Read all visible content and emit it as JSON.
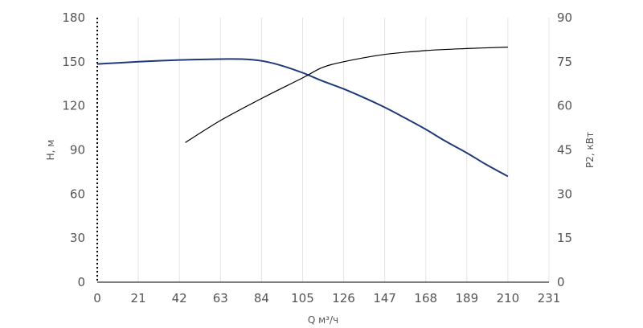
{
  "chart_data": {
    "type": "line",
    "title": "",
    "xlabel": "Q м³/ч",
    "ylabel_left": "Н, м",
    "ylabel_right": "Р2, кВт",
    "x_ticks": [
      "0",
      "21",
      "42",
      "63",
      "84",
      "105",
      "126",
      "147",
      "168",
      "189",
      "210",
      "231"
    ],
    "y_left_ticks": [
      "0",
      "30",
      "60",
      "90",
      "120",
      "150",
      "180"
    ],
    "y_right_ticks": [
      "0",
      "15",
      "30",
      "45",
      "60",
      "75",
      "90"
    ],
    "xlim": [
      0,
      231
    ],
    "ylim_left": [
      0,
      180
    ],
    "ylim_right": [
      0,
      90
    ],
    "grid": "vertical",
    "colors": {
      "head": "#1f3a7a",
      "power": "#000000",
      "grid": "#e3e3e3",
      "axis": "#000000",
      "text": "#555555"
    },
    "series": [
      {
        "axis": "left",
        "x": [
          0,
          21,
          42,
          63,
          74,
          84,
          94,
          105,
          115,
          126,
          136,
          147,
          157,
          168,
          178,
          189,
          199,
          210
        ],
        "y": [
          148.5,
          150.0,
          151.2,
          151.8,
          151.8,
          150.6,
          147.5,
          142.5,
          137.0,
          131.5,
          125.8,
          119.0,
          112.0,
          104.0,
          96.0,
          88.0,
          80.0,
          72.0
        ]
      },
      {
        "axis": "right",
        "x": [
          45,
          63,
          84,
          105,
          115,
          126,
          147,
          168,
          189,
          210
        ],
        "y": [
          47.5,
          55.0,
          62.5,
          69.5,
          73.0,
          75.0,
          77.5,
          78.8,
          79.5,
          80.0
        ]
      }
    ]
  }
}
